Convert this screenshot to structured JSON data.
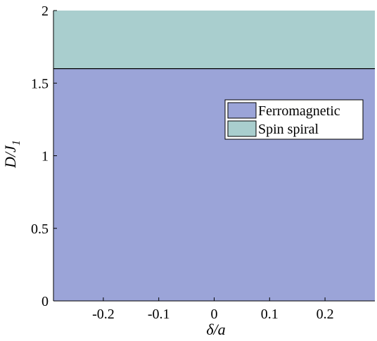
{
  "chart_data": {
    "type": "area",
    "title": "",
    "xlabel": "δ/a",
    "ylabel_main": "D/J",
    "ylabel_subscript": "1",
    "xlim": [
      -0.29,
      0.29
    ],
    "ylim": [
      0,
      2
    ],
    "x_ticks": [
      {
        "value": -0.2,
        "label": "-0.2"
      },
      {
        "value": -0.1,
        "label": "-0.1"
      },
      {
        "value": 0,
        "label": "0"
      },
      {
        "value": 0.1,
        "label": "0.1"
      },
      {
        "value": 0.2,
        "label": "0.2"
      }
    ],
    "y_ticks": [
      {
        "value": 0,
        "label": "0"
      },
      {
        "value": 0.5,
        "label": "0.5"
      },
      {
        "value": 1,
        "label": "1"
      },
      {
        "value": 1.5,
        "label": "1.5"
      },
      {
        "value": 2,
        "label": "2"
      }
    ],
    "grid": false,
    "legend_position": "upper-right",
    "boundary_value": 1.6,
    "regions": [
      {
        "name": "Ferromagnetic",
        "y_range": [
          0,
          1.6
        ],
        "color": "#9BA4D8"
      },
      {
        "name": "Spin spiral",
        "y_range": [
          1.6,
          2
        ],
        "color": "#A9CECE"
      }
    ]
  }
}
